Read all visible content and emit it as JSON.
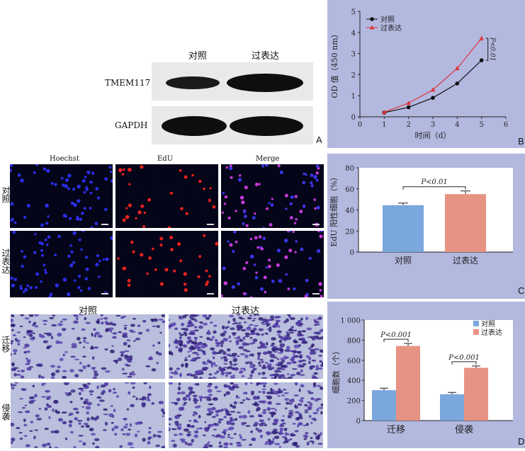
{
  "panelA": {
    "letter": "A",
    "col_labels": [
      "对照",
      "过表达"
    ],
    "row_labels": [
      "TMEM117",
      "GAPDH"
    ]
  },
  "panelB": {
    "letter": "B",
    "legend": [
      "对照",
      "过表达"
    ],
    "annotation": "P<0.01",
    "ylabel": "OD 值（450 nm）",
    "xlabel": "时间（d）",
    "xticks": [
      "0",
      "1",
      "2",
      "3",
      "4",
      "5",
      "6"
    ],
    "yticks": [
      "0",
      "1",
      "2",
      "3",
      "4",
      "5"
    ]
  },
  "panelC": {
    "letter": "C",
    "col_labels": [
      "Hoechst",
      "EdU",
      "Merge"
    ],
    "row_labels": [
      "对照",
      "过表达"
    ],
    "ylabel": "EdU 阳性细胞（%）",
    "categories": [
      "对照",
      "过表达"
    ],
    "annotation": "P<0.01",
    "yticks": [
      "0",
      "20",
      "40",
      "60",
      "80"
    ]
  },
  "panelD": {
    "letter": "D",
    "col_labels": [
      "对照",
      "过表达"
    ],
    "row_labels": [
      "迁移",
      "侵袭"
    ],
    "legend": [
      "对照",
      "过表达"
    ],
    "ylabel": "细胞数（个）",
    "categories": [
      "迁移",
      "侵袭"
    ],
    "annotations": [
      "P<0.001",
      "P<0.001"
    ],
    "yticks": [
      "0",
      "200",
      "400",
      "600",
      "800",
      "1 000"
    ]
  },
  "colors": {
    "control_line": "#111111",
    "overexp_line": "#e0343a",
    "control_bar": "#7aa7dc",
    "overexp_bar": "#e69383",
    "chart_bg": "#b3b8df"
  },
  "chart_data": [
    {
      "type": "line",
      "x": [
        1,
        2,
        3,
        4,
        5
      ],
      "series": [
        {
          "name": "对照",
          "values": [
            0.2,
            0.45,
            0.9,
            1.58,
            2.68
          ],
          "err": [
            0.03,
            0.04,
            0.05,
            0.08,
            0.1
          ]
        },
        {
          "name": "过表达",
          "values": [
            0.22,
            0.65,
            1.28,
            2.3,
            3.72
          ],
          "err": [
            0.03,
            0.05,
            0.06,
            0.1,
            0.12
          ]
        }
      ],
      "xlabel": "时间（d）",
      "ylabel": "OD 值（450 nm）",
      "xlim": [
        0,
        6
      ],
      "ylim": [
        0,
        5
      ]
    },
    {
      "type": "bar",
      "categories": [
        "对照",
        "过表达"
      ],
      "values": [
        44.5,
        55
      ],
      "err": [
        2,
        3
      ],
      "ylabel": "EdU 阳性细胞（%）",
      "ylim": [
        0,
        80
      ]
    },
    {
      "type": "bar",
      "categories": [
        "迁移",
        "侵袭"
      ],
      "series": [
        {
          "name": "对照",
          "values": [
            302,
            262
          ],
          "err": [
            20,
            18
          ]
        },
        {
          "name": "过表达",
          "values": [
            742,
            525
          ],
          "err": [
            25,
            18
          ]
        }
      ],
      "ylabel": "细胞数（个）",
      "ylim": [
        0,
        1000
      ]
    }
  ]
}
